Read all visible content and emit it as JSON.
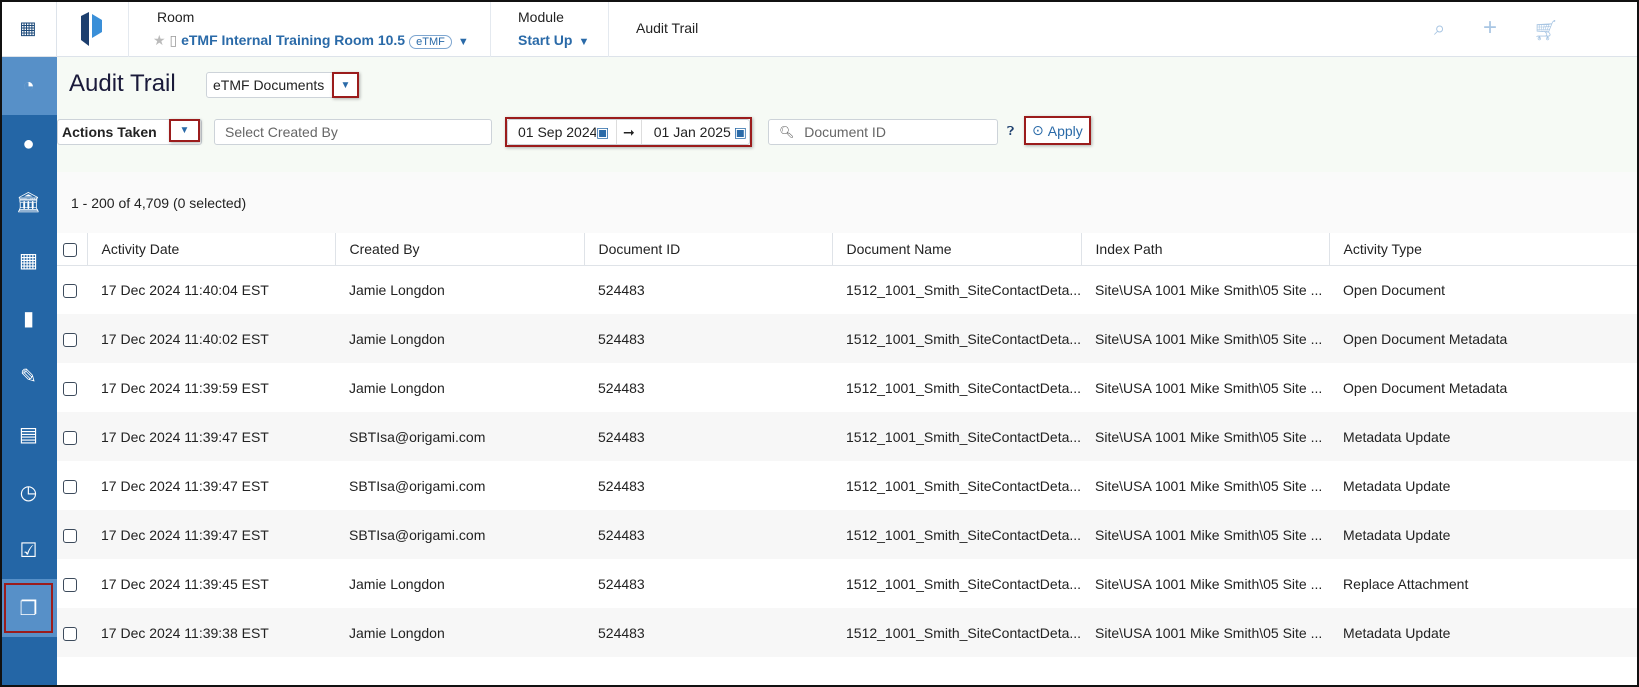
{
  "header": {
    "room_label": "Room",
    "room_name": "eTMF Internal Training Room 10.5",
    "room_badge": "eTMF",
    "module_label": "Module",
    "module_name": "Start Up",
    "current": "Audit Trail"
  },
  "page": {
    "title": "Audit Trail",
    "doc_type": "eTMF Documents"
  },
  "filters": {
    "actions": "Actions Taken",
    "created_by_placeholder": "Select Created By",
    "date_from": "01 Sep 2024",
    "date_to": "01 Jan 2025",
    "doc_id_placeholder": "Document ID",
    "apply": "Apply"
  },
  "summary": "1 - 200 of 4,709 (0 selected)",
  "sidebar": [
    "dashboard-icon",
    "globe-icon",
    "institution-icon",
    "hospital-icon",
    "document-icon",
    "edit-icon",
    "contact-card-icon",
    "clock-icon",
    "checkbox-icon",
    "copy-documents-icon"
  ],
  "table": {
    "columns": [
      "Activity Date",
      "Created By",
      "Document ID",
      "Document Name",
      "Index Path",
      "Activity Type"
    ],
    "rows": [
      [
        "17 Dec 2024 11:40:04 EST",
        "Jamie Longdon",
        "524483",
        "1512_1001_Smith_SiteContactDeta...",
        "Site\\USA 1001 Mike Smith\\05 Site ...",
        "Open Document"
      ],
      [
        "17 Dec 2024 11:40:02 EST",
        "Jamie Longdon",
        "524483",
        "1512_1001_Smith_SiteContactDeta...",
        "Site\\USA 1001 Mike Smith\\05 Site ...",
        "Open Document Metadata"
      ],
      [
        "17 Dec 2024 11:39:59 EST",
        "Jamie Longdon",
        "524483",
        "1512_1001_Smith_SiteContactDeta...",
        "Site\\USA 1001 Mike Smith\\05 Site ...",
        "Open Document Metadata"
      ],
      [
        "17 Dec 2024 11:39:47 EST",
        "SBTIsa@origami.com",
        "524483",
        "1512_1001_Smith_SiteContactDeta...",
        "Site\\USA 1001 Mike Smith\\05 Site ...",
        "Metadata Update"
      ],
      [
        "17 Dec 2024 11:39:47 EST",
        "SBTIsa@origami.com",
        "524483",
        "1512_1001_Smith_SiteContactDeta...",
        "Site\\USA 1001 Mike Smith\\05 Site ...",
        "Metadata Update"
      ],
      [
        "17 Dec 2024 11:39:47 EST",
        "SBTIsa@origami.com",
        "524483",
        "1512_1001_Smith_SiteContactDeta...",
        "Site\\USA 1001 Mike Smith\\05 Site ...",
        "Metadata Update"
      ],
      [
        "17 Dec 2024 11:39:45 EST",
        "Jamie Longdon",
        "524483",
        "1512_1001_Smith_SiteContactDeta...",
        "Site\\USA 1001 Mike Smith\\05 Site ...",
        "Replace Attachment"
      ],
      [
        "17 Dec 2024 11:39:38 EST",
        "Jamie Longdon",
        "524483",
        "1512_1001_Smith_SiteContactDeta...",
        "Site\\USA 1001 Mike Smith\\05 Site ...",
        "Metadata Update"
      ]
    ]
  },
  "colors": {
    "sidebar": "#2466a6",
    "accent": "#2a6aa8",
    "highlight": "#9b1c1c"
  }
}
